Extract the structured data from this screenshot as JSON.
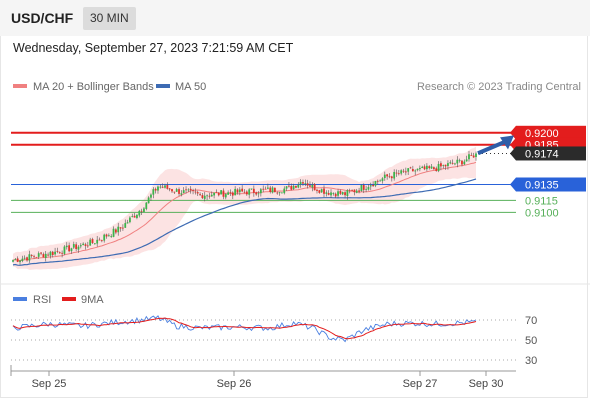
{
  "header": {
    "symbol": "USD/CHF",
    "timeframe": "30 MIN"
  },
  "timestamp": "Wednesday, September 27, 2023 7:21:59 AM CET",
  "credit": "Research © 2023 Trading Central",
  "colors": {
    "candle_up": "#3bb34a",
    "candle_down": "#e0342b",
    "ma20": "#f08080",
    "band_fill": "#fbdcdc",
    "ma50": "#3d6bb3",
    "resistance": "#e31d1d",
    "pivot": "#2962d9",
    "support": "#57b05a",
    "rsi": "#4a7fe0",
    "rsi_ma": "#e31d1d",
    "arrow": "#2f5ea8"
  },
  "chart_data": [
    {
      "type": "candlestick",
      "legend": [
        {
          "label": "MA 20 + Bollinger Bands",
          "color": "#f08080"
        },
        {
          "label": "MA 50",
          "color": "#3d6bb3"
        }
      ],
      "x_ticks": [
        "Sep 25",
        "Sep 26",
        "Sep 27",
        "Sep 30"
      ],
      "ylim": [
        0.9025,
        0.9245
      ],
      "levels": [
        {
          "label": "0.9200",
          "value": 0.92,
          "style": "resistance",
          "tag": "red-box"
        },
        {
          "label": "0.9185",
          "value": 0.9185,
          "style": "resistance",
          "tag": "red-box"
        },
        {
          "label": "0.9174",
          "value": 0.9174,
          "style": "last-price",
          "tag": "dark-box"
        },
        {
          "label": "0.9135",
          "value": 0.9135,
          "style": "pivot",
          "tag": "blue-box"
        },
        {
          "label": "0.9115",
          "value": 0.9115,
          "style": "support",
          "tag": "green-text"
        },
        {
          "label": "0.9100",
          "value": 0.91,
          "style": "support",
          "tag": "green-text"
        }
      ],
      "path_keypoints": [
        [
          0,
          0.904
        ],
        [
          18,
          0.905
        ],
        [
          34,
          0.9062
        ],
        [
          46,
          0.908
        ],
        [
          55,
          0.9105
        ],
        [
          62,
          0.9133
        ],
        [
          70,
          0.9127
        ],
        [
          80,
          0.9122
        ],
        [
          95,
          0.9125
        ],
        [
          110,
          0.9128
        ],
        [
          118,
          0.913
        ],
        [
          124,
          0.914
        ],
        [
          128,
          0.9132
        ],
        [
          134,
          0.9126
        ],
        [
          142,
          0.9123
        ],
        [
          150,
          0.9132
        ],
        [
          160,
          0.9145
        ],
        [
          170,
          0.9152
        ],
        [
          180,
          0.9155
        ],
        [
          193,
          0.9165
        ],
        [
          198,
          0.9174
        ]
      ],
      "candle_count": 199,
      "ma20_end": 0.916,
      "ma50_end": 0.9142,
      "arrow": {
        "from": 0.9173,
        "to": 0.9198
      }
    },
    {
      "type": "line",
      "legend": [
        {
          "label": "RSI",
          "color": "#4a7fe0"
        },
        {
          "label": "9MA",
          "color": "#e31d1d"
        }
      ],
      "y_ticks": [
        70,
        50,
        30
      ],
      "ylim": [
        20,
        80
      ],
      "rsi_keypoints": [
        [
          0,
          62
        ],
        [
          15,
          66
        ],
        [
          30,
          64
        ],
        [
          45,
          68
        ],
        [
          55,
          70
        ],
        [
          62,
          72
        ],
        [
          70,
          64
        ],
        [
          80,
          62
        ],
        [
          95,
          63
        ],
        [
          110,
          62
        ],
        [
          120,
          67
        ],
        [
          128,
          62
        ],
        [
          136,
          52
        ],
        [
          142,
          50
        ],
        [
          150,
          60
        ],
        [
          160,
          66
        ],
        [
          170,
          67
        ],
        [
          180,
          66
        ],
        [
          190,
          67
        ],
        [
          198,
          68
        ]
      ]
    }
  ]
}
